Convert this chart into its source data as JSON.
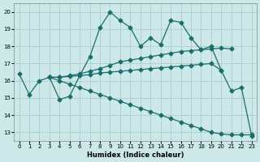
{
  "xlabel": "Humidex (Indice chaleur)",
  "xlim": [
    -0.5,
    23.5
  ],
  "ylim": [
    12.5,
    20.5
  ],
  "yticks": [
    13,
    14,
    15,
    16,
    17,
    18,
    19,
    20
  ],
  "xticks": [
    0,
    1,
    2,
    3,
    4,
    5,
    6,
    7,
    8,
    9,
    10,
    11,
    12,
    13,
    14,
    15,
    16,
    17,
    18,
    19,
    20,
    21,
    22,
    23
  ],
  "bg_color": "#cce8e8",
  "grid_color": "#aacccc",
  "line_color": "#1a6e6a",
  "line1_x": [
    0,
    1,
    2,
    3,
    4,
    5,
    6,
    7,
    8,
    9,
    10,
    11,
    12,
    13,
    14,
    15,
    16,
    17,
    18,
    19,
    20,
    21,
    22,
    23
  ],
  "line1_y": [
    16.4,
    15.2,
    16.0,
    16.2,
    14.9,
    15.1,
    16.3,
    17.4,
    19.1,
    20.0,
    19.5,
    19.1,
    18.0,
    18.5,
    18.1,
    19.5,
    19.4,
    18.5,
    17.8,
    18.0,
    16.6,
    15.4,
    15.6,
    12.8
  ],
  "line2_x": [
    3,
    4,
    5,
    6,
    7,
    8,
    9,
    10,
    11,
    12,
    13,
    14,
    15,
    16,
    17,
    18,
    19,
    20
  ],
  "line2_y": [
    16.2,
    16.2,
    16.25,
    16.3,
    16.35,
    16.45,
    16.5,
    16.55,
    16.6,
    16.65,
    16.7,
    16.75,
    16.8,
    16.85,
    16.9,
    16.95,
    17.0,
    16.6
  ],
  "line3_x": [
    3,
    4,
    5,
    6,
    7,
    8,
    9,
    10,
    11,
    12,
    13,
    14,
    15,
    16,
    17,
    18,
    19,
    20,
    21
  ],
  "line3_y": [
    16.2,
    16.2,
    16.3,
    16.4,
    16.55,
    16.7,
    16.9,
    17.1,
    17.2,
    17.3,
    17.4,
    17.5,
    17.6,
    17.7,
    17.75,
    17.8,
    17.85,
    17.9,
    17.85
  ],
  "line4_x": [
    3,
    4,
    5,
    6,
    7,
    8,
    9,
    10,
    11,
    12,
    13,
    14,
    15,
    16,
    17,
    18,
    19,
    20,
    21,
    22,
    23
  ],
  "line4_y": [
    16.2,
    16.0,
    15.8,
    15.6,
    15.4,
    15.2,
    15.0,
    14.8,
    14.6,
    14.4,
    14.2,
    14.0,
    13.8,
    13.6,
    13.4,
    13.2,
    13.0,
    12.9,
    12.85,
    12.85,
    12.85
  ]
}
